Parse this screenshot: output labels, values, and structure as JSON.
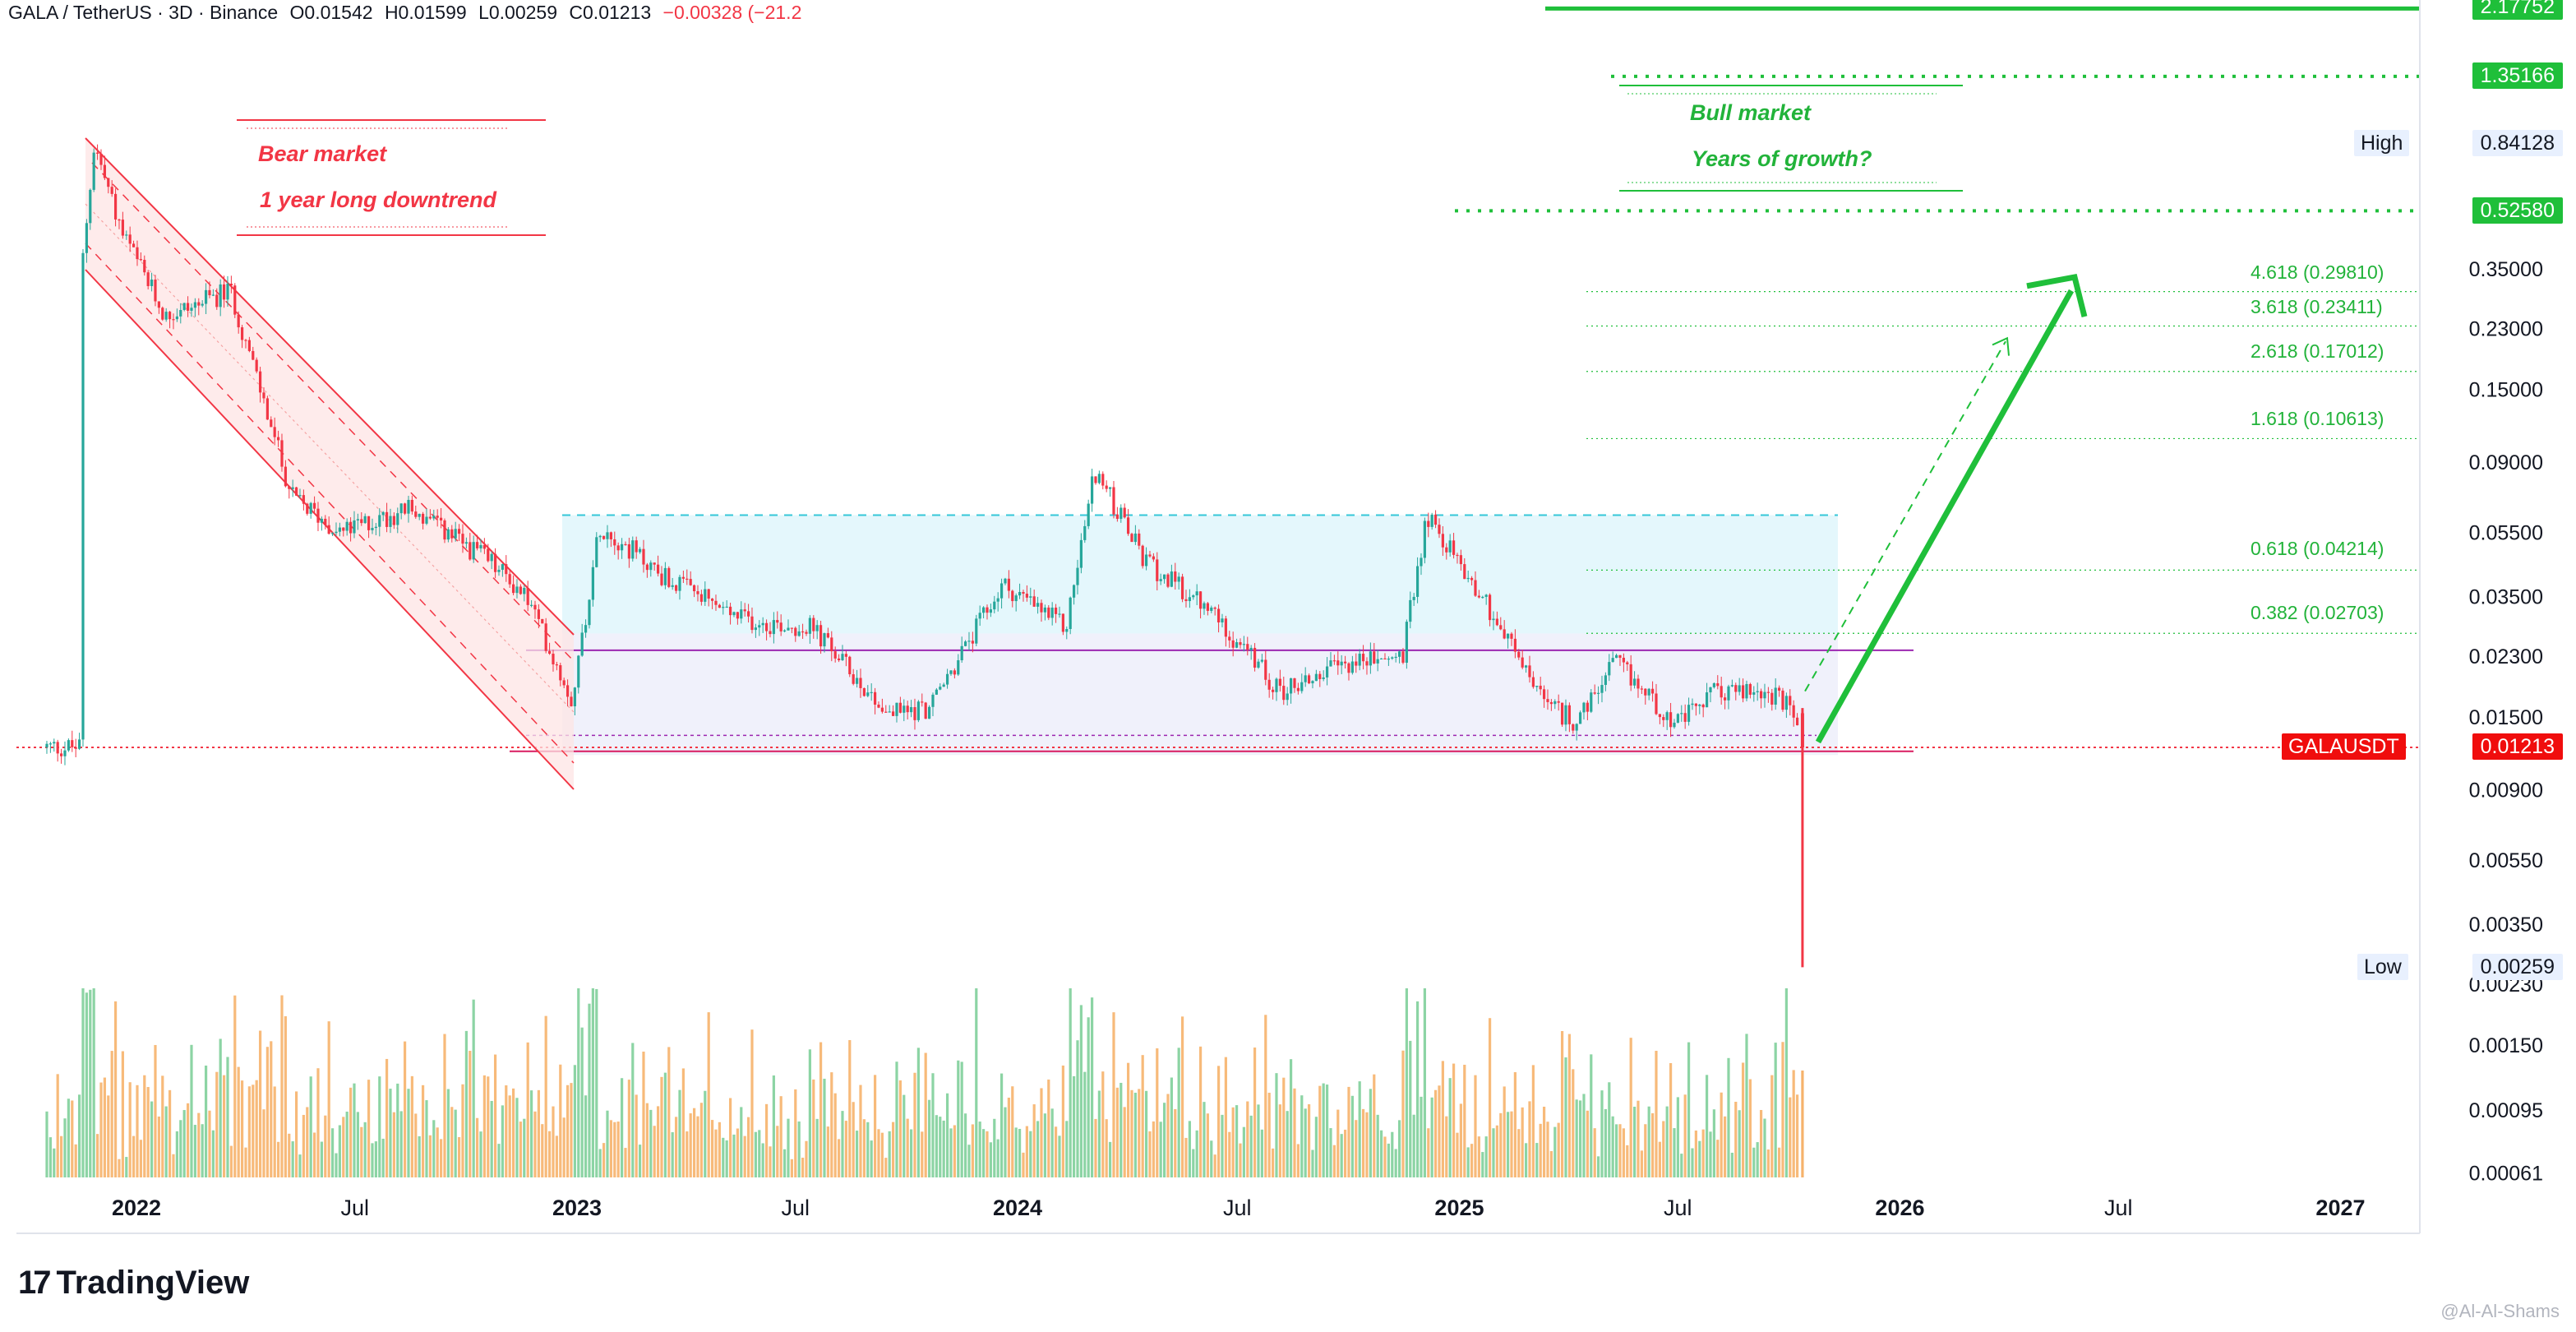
{
  "header": {
    "symbol": "GALA / TetherUS · 3D · Binance",
    "open": "O0.01542",
    "high": "H0.01599",
    "low": "L0.00259",
    "close": "C0.01213",
    "change": "−0.00328 (−21.2"
  },
  "price_axis": {
    "ticks": [
      "0.35000",
      "0.23000",
      "0.15000",
      "0.09000",
      "0.05500",
      "0.03500",
      "0.02300",
      "0.01500",
      "0.00900",
      "0.00550",
      "0.00350",
      "0.00230",
      "0.00150",
      "0.00095",
      "0.00061"
    ],
    "labels": {
      "top_green": "2.17752",
      "target_2": "1.35166",
      "high_tag": "High",
      "high_value": "0.84128",
      "target_3": "0.52580",
      "symbol_tag": "GALAUSDT",
      "last_price": "0.01213",
      "low_tag": "Low",
      "low_value": "0.00259"
    }
  },
  "time_axis": {
    "labels": [
      "2022",
      "Jul",
      "2023",
      "Jul",
      "2024",
      "Jul",
      "2025",
      "Jul",
      "2026",
      "Jul",
      "2027"
    ]
  },
  "annotations": {
    "bear_title": "Bear market",
    "bear_sub": "1 year long downtrend",
    "bull_title": "Bull market",
    "bull_sub": "Years of growth?"
  },
  "fib_levels": [
    {
      "label": "4.618 (0.29810)",
      "value": 0.2981
    },
    {
      "label": "3.618 (0.23411)",
      "value": 0.23411
    },
    {
      "label": "2.618 (0.17012)",
      "value": 0.17012
    },
    {
      "label": "1.618 (0.10613)",
      "value": 0.10613
    },
    {
      "label": "0.618 (0.04214)",
      "value": 0.04214
    },
    {
      "label": "0.382 (0.02703)",
      "value": 0.02703
    }
  ],
  "branding": {
    "logo": "TradingView",
    "watermark": "@Al-Al-Shams"
  },
  "colors": {
    "up": "#22ab94",
    "up_green": "#26a69a",
    "down": "#f23645",
    "accent_green": "#1fbf3a",
    "range_fill": "#dff6fb",
    "channel_fill": "#fde4e4"
  },
  "chart_data": {
    "type": "candlestick",
    "scale": "log",
    "ylim": [
      0.00061,
      2.2
    ],
    "anchors": [
      {
        "t": "2021-11-15",
        "p": 0.3
      },
      {
        "t": "2021-11-27",
        "p": 0.84
      },
      {
        "t": "2021-12-20",
        "p": 0.45
      },
      {
        "t": "2022-01-25",
        "p": 0.25
      },
      {
        "t": "2022-03-20",
        "p": 0.3
      },
      {
        "t": "2022-05-10",
        "p": 0.07
      },
      {
        "t": "2022-06-20",
        "p": 0.055
      },
      {
        "t": "2022-08-15",
        "p": 0.065
      },
      {
        "t": "2022-10-20",
        "p": 0.045
      },
      {
        "t": "2022-11-20",
        "p": 0.035
      },
      {
        "t": "2022-12-28",
        "p": 0.017
      },
      {
        "t": "2023-01-20",
        "p": 0.058
      },
      {
        "t": "2023-03-15",
        "p": 0.04
      },
      {
        "t": "2023-05-15",
        "p": 0.03
      },
      {
        "t": "2023-07-15",
        "p": 0.028
      },
      {
        "t": "2023-09-15",
        "p": 0.0155
      },
      {
        "t": "2023-10-20",
        "p": 0.016
      },
      {
        "t": "2023-12-20",
        "p": 0.038
      },
      {
        "t": "2024-02-10",
        "p": 0.028
      },
      {
        "t": "2024-03-05",
        "p": 0.085
      },
      {
        "t": "2024-04-15",
        "p": 0.045
      },
      {
        "t": "2024-06-15",
        "p": 0.03
      },
      {
        "t": "2024-08-05",
        "p": 0.018
      },
      {
        "t": "2024-10-01",
        "p": 0.022
      },
      {
        "t": "2024-11-15",
        "p": 0.023
      },
      {
        "t": "2024-12-05",
        "p": 0.062
      },
      {
        "t": "2025-01-20",
        "p": 0.035
      },
      {
        "t": "2025-03-15",
        "p": 0.016
      },
      {
        "t": "2025-04-10",
        "p": 0.0145
      },
      {
        "t": "2025-05-10",
        "p": 0.022
      },
      {
        "t": "2025-07-01",
        "p": 0.0142
      },
      {
        "t": "2025-08-01",
        "p": 0.018
      },
      {
        "t": "2025-09-15",
        "p": 0.0178
      },
      {
        "t": "2025-10-05",
        "p": 0.0154
      },
      {
        "t": "2025-10-12",
        "p": 0.01213
      }
    ],
    "last": {
      "open": 0.01542,
      "high": 0.01599,
      "low": 0.00259,
      "close": 0.01213
    },
    "levels": {
      "range_top": 0.062,
      "range_mid": 0.027,
      "range_support": 0.0132,
      "range_bottom": 0.0118,
      "target_1": 2.17752,
      "target_2": 1.35166,
      "target_3": 0.5258
    }
  }
}
